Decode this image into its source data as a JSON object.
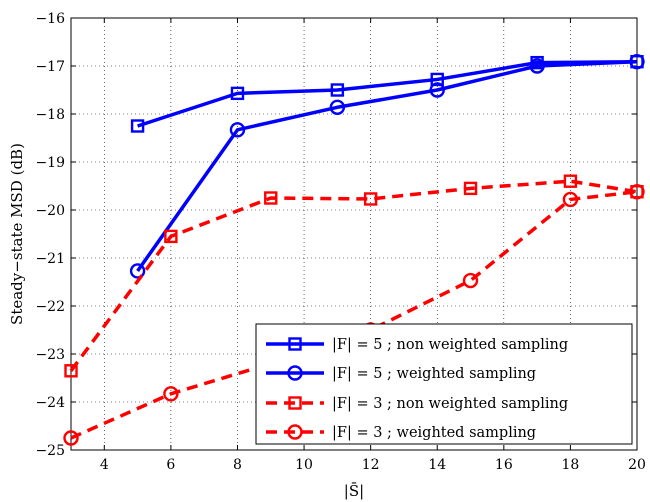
{
  "chart_data": {
    "type": "line",
    "xlabel": "|S̄|",
    "ylabel": "Steady−state MSD (dB)",
    "xlim": [
      3,
      20
    ],
    "ylim": [
      -25,
      -16
    ],
    "xticks": [
      4,
      6,
      8,
      10,
      12,
      14,
      16,
      18,
      20
    ],
    "yticks": [
      -25,
      -24,
      -23,
      -22,
      -21,
      -20,
      -19,
      -18,
      -17,
      -16
    ],
    "xtick_labels": [
      "4",
      "6",
      "8",
      "10",
      "12",
      "14",
      "16",
      "18",
      "20"
    ],
    "ytick_labels": [
      "−25",
      "−24",
      "−23",
      "−22",
      "−21",
      "−20",
      "−19",
      "−18",
      "−17",
      "−16"
    ],
    "grid": true,
    "legend_position": "bottom-right",
    "series": [
      {
        "name": "|F| = 5 ; non weighted sampling",
        "color": "#0000ff",
        "line": "solid",
        "marker": "square",
        "x": [
          5,
          8,
          11,
          14,
          17,
          20
        ],
        "y": [
          -18.25,
          -17.57,
          -17.5,
          -17.28,
          -16.93,
          -16.91
        ]
      },
      {
        "name": "|F| = 5 ; weighted sampling",
        "color": "#0000ff",
        "line": "solid",
        "marker": "circle",
        "x": [
          5,
          8,
          11,
          14,
          17,
          20
        ],
        "y": [
          -21.27,
          -18.33,
          -17.86,
          -17.5,
          -17.0,
          -16.91
        ]
      },
      {
        "name": "|F| = 3 ; non weighted sampling",
        "color": "#ff0000",
        "line": "dashed",
        "marker": "square",
        "x": [
          3,
          6,
          9,
          12,
          15,
          18,
          20
        ],
        "y": [
          -23.35,
          -20.55,
          -19.75,
          -19.77,
          -19.55,
          -19.4,
          -19.62
        ]
      },
      {
        "name": "|F| = 3 ; weighted sampling",
        "color": "#ff0000",
        "line": "dashed",
        "marker": "circle",
        "x": [
          3,
          6,
          9,
          12,
          15,
          18,
          20
        ],
        "y": [
          -24.75,
          -23.83,
          -23.2,
          -22.5,
          -21.47,
          -19.78,
          -19.62
        ]
      }
    ]
  }
}
